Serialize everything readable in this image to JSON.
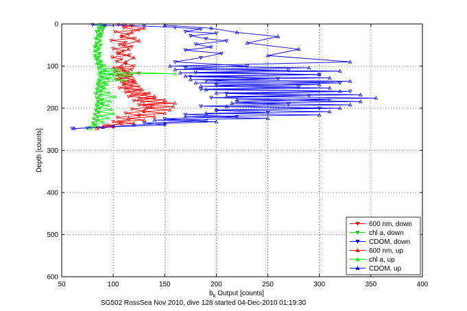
{
  "chart_data": {
    "type": "line",
    "title": "",
    "xlabel_main": "b",
    "xlabel_sub": "b",
    "xlabel_rest": " Output [counts]",
    "ylabel": "Depth [counts]",
    "footer": "SG502 RossSea Nov 2010, dive 128 started 04-Dec-2010 01:19:30",
    "xlim": [
      50,
      400
    ],
    "ylim": [
      0,
      600
    ],
    "y_reversed": true,
    "xticks": [
      50,
      100,
      150,
      200,
      250,
      300,
      350,
      400
    ],
    "yticks": [
      0,
      100,
      200,
      300,
      400,
      500,
      600
    ],
    "grid": true,
    "legend_position": "bottom-right",
    "series": [
      {
        "name": "600 nm, down",
        "color": "#ff0000",
        "marker": "triangle-down",
        "points": [
          [
            105,
            2
          ],
          [
            118,
            5
          ],
          [
            110,
            9
          ],
          [
            125,
            14
          ],
          [
            102,
            19
          ],
          [
            115,
            24
          ],
          [
            108,
            29
          ],
          [
            121,
            34
          ],
          [
            98,
            39
          ],
          [
            112,
            44
          ],
          [
            106,
            49
          ],
          [
            118,
            54
          ],
          [
            100,
            59
          ],
          [
            110,
            64
          ],
          [
            104,
            69
          ],
          [
            116,
            74
          ],
          [
            99,
            79
          ],
          [
            108,
            84
          ],
          [
            103,
            89
          ],
          [
            112,
            94
          ],
          [
            120,
            100
          ],
          [
            105,
            104
          ],
          [
            118,
            108
          ],
          [
            110,
            112
          ],
          [
            125,
            117
          ],
          [
            108,
            122
          ],
          [
            115,
            127
          ],
          [
            103,
            132
          ],
          [
            120,
            137
          ],
          [
            110,
            142
          ],
          [
            118,
            147
          ],
          [
            106,
            152
          ],
          [
            126,
            157
          ],
          [
            112,
            162
          ],
          [
            132,
            167
          ],
          [
            115,
            172
          ],
          [
            140,
            177
          ],
          [
            120,
            182
          ],
          [
            150,
            187
          ],
          [
            125,
            192
          ],
          [
            138,
            197
          ],
          [
            118,
            202
          ],
          [
            130,
            207
          ],
          [
            112,
            212
          ],
          [
            125,
            217
          ],
          [
            104,
            222
          ],
          [
            115,
            227
          ],
          [
            100,
            232
          ],
          [
            108,
            237
          ],
          [
            92,
            242
          ],
          [
            85,
            246
          ]
        ]
      },
      {
        "name": "chl a, down",
        "color": "#00cc00",
        "marker": "triangle-down",
        "points": [
          [
            88,
            2
          ],
          [
            91,
            6
          ],
          [
            86,
            10
          ],
          [
            90,
            14
          ],
          [
            84,
            18
          ],
          [
            89,
            22
          ],
          [
            85,
            26
          ],
          [
            88,
            30
          ],
          [
            83,
            35
          ],
          [
            87,
            40
          ],
          [
            84,
            45
          ],
          [
            88,
            50
          ],
          [
            82,
            55
          ],
          [
            86,
            60
          ],
          [
            83,
            65
          ],
          [
            87,
            70
          ],
          [
            82,
            75
          ],
          [
            86,
            80
          ],
          [
            84,
            85
          ],
          [
            88,
            90
          ],
          [
            85,
            95
          ],
          [
            89,
            100
          ],
          [
            86,
            105
          ],
          [
            92,
            110
          ],
          [
            87,
            115
          ],
          [
            100,
            120
          ],
          [
            88,
            125
          ],
          [
            95,
            130
          ],
          [
            86,
            135
          ],
          [
            92,
            140
          ],
          [
            85,
            145
          ],
          [
            90,
            150
          ],
          [
            84,
            155
          ],
          [
            88,
            160
          ],
          [
            83,
            165
          ],
          [
            87,
            170
          ],
          [
            84,
            175
          ],
          [
            89,
            180
          ],
          [
            85,
            185
          ],
          [
            90,
            190
          ],
          [
            84,
            195
          ],
          [
            87,
            200
          ],
          [
            83,
            205
          ],
          [
            86,
            210
          ],
          [
            82,
            215
          ],
          [
            85,
            220
          ],
          [
            81,
            225
          ],
          [
            84,
            230
          ],
          [
            80,
            235
          ],
          [
            82,
            240
          ],
          [
            78,
            245
          ]
        ]
      },
      {
        "name": "CDOM, down",
        "color": "#0000ff",
        "marker": "triangle-down",
        "points": [
          [
            80,
            2
          ],
          [
            92,
            4
          ],
          [
            110,
            3
          ],
          [
            130,
            5
          ],
          [
            160,
            8
          ],
          [
            185,
            12
          ],
          [
            170,
            18
          ],
          [
            200,
            22
          ],
          [
            175,
            28
          ],
          [
            190,
            35
          ],
          [
            210,
            40
          ],
          [
            180,
            48
          ],
          [
            195,
            55
          ],
          [
            170,
            62
          ],
          [
            205,
            70
          ],
          [
            185,
            80
          ],
          [
            160,
            90
          ],
          [
            230,
            100
          ],
          [
            170,
            105
          ],
          [
            270,
            110
          ],
          [
            180,
            115
          ],
          [
            300,
            120
          ],
          [
            175,
            125
          ],
          [
            260,
            130
          ],
          [
            190,
            135
          ],
          [
            320,
            140
          ],
          [
            200,
            145
          ],
          [
            280,
            150
          ],
          [
            185,
            155
          ],
          [
            330,
            160
          ],
          [
            210,
            165
          ],
          [
            290,
            170
          ],
          [
            195,
            175
          ],
          [
            310,
            180
          ],
          [
            220,
            185
          ],
          [
            270,
            190
          ],
          [
            185,
            195
          ],
          [
            300,
            200
          ],
          [
            200,
            205
          ],
          [
            250,
            210
          ],
          [
            170,
            215
          ],
          [
            220,
            220
          ],
          [
            150,
            225
          ],
          [
            190,
            230
          ],
          [
            130,
            235
          ],
          [
            150,
            240
          ],
          [
            100,
            244
          ],
          [
            75,
            247
          ],
          [
            60,
            248
          ]
        ]
      },
      {
        "name": "600 nm, up",
        "color": "#ff0000",
        "marker": "triangle-up",
        "points": [
          [
            84,
            248
          ],
          [
            100,
            244
          ],
          [
            95,
            240
          ],
          [
            120,
            236
          ],
          [
            105,
            232
          ],
          [
            130,
            228
          ],
          [
            115,
            224
          ],
          [
            140,
            220
          ],
          [
            125,
            216
          ],
          [
            150,
            212
          ],
          [
            130,
            208
          ],
          [
            155,
            204
          ],
          [
            132,
            200
          ],
          [
            158,
            196
          ],
          [
            130,
            192
          ],
          [
            160,
            188
          ],
          [
            128,
            184
          ],
          [
            150,
            180
          ],
          [
            125,
            176
          ],
          [
            140,
            172
          ],
          [
            118,
            168
          ],
          [
            135,
            164
          ],
          [
            115,
            160
          ],
          [
            128,
            156
          ],
          [
            112,
            152
          ],
          [
            125,
            148
          ],
          [
            110,
            144
          ],
          [
            122,
            140
          ],
          [
            108,
            136
          ],
          [
            120,
            132
          ],
          [
            106,
            128
          ],
          [
            118,
            124
          ],
          [
            104,
            120
          ],
          [
            115,
            116
          ],
          [
            102,
            112
          ],
          [
            110,
            108
          ],
          [
            100,
            104
          ],
          [
            108,
            100
          ],
          [
            112,
            90
          ],
          [
            120,
            80
          ],
          [
            105,
            70
          ],
          [
            115,
            60
          ],
          [
            110,
            50
          ],
          [
            125,
            40
          ],
          [
            108,
            30
          ],
          [
            118,
            20
          ],
          [
            130,
            10
          ],
          [
            112,
            3
          ]
        ]
      },
      {
        "name": "chl a, up",
        "color": "#00ff00",
        "marker": "triangle-up",
        "points": [
          [
            78,
            248
          ],
          [
            84,
            243
          ],
          [
            82,
            238
          ],
          [
            90,
            233
          ],
          [
            85,
            228
          ],
          [
            95,
            223
          ],
          [
            88,
            218
          ],
          [
            100,
            213
          ],
          [
            86,
            208
          ],
          [
            98,
            203
          ],
          [
            85,
            198
          ],
          [
            95,
            193
          ],
          [
            84,
            188
          ],
          [
            97,
            183
          ],
          [
            86,
            178
          ],
          [
            102,
            173
          ],
          [
            88,
            168
          ],
          [
            96,
            163
          ],
          [
            85,
            158
          ],
          [
            92,
            153
          ],
          [
            86,
            148
          ],
          [
            94,
            143
          ],
          [
            85,
            138
          ],
          [
            110,
            133
          ],
          [
            87,
            128
          ],
          [
            115,
            123
          ],
          [
            86,
            118
          ],
          [
            160,
            118
          ],
          [
            88,
            113
          ],
          [
            105,
            108
          ],
          [
            86,
            103
          ],
          [
            92,
            98
          ],
          [
            84,
            93
          ],
          [
            88,
            88
          ],
          [
            83,
            80
          ],
          [
            87,
            72
          ],
          [
            82,
            64
          ],
          [
            86,
            56
          ],
          [
            83,
            48
          ],
          [
            87,
            40
          ],
          [
            84,
            32
          ],
          [
            88,
            24
          ],
          [
            85,
            16
          ],
          [
            89,
            8
          ],
          [
            86,
            2
          ]
        ]
      },
      {
        "name": "CDOM, up",
        "color": "#0000ff",
        "marker": "triangle-up",
        "points": [
          [
            62,
            248
          ],
          [
            90,
            245
          ],
          [
            120,
            240
          ],
          [
            150,
            236
          ],
          [
            200,
            232
          ],
          [
            140,
            228
          ],
          [
            250,
            224
          ],
          [
            170,
            220
          ],
          [
            300,
            216
          ],
          [
            190,
            212
          ],
          [
            310,
            208
          ],
          [
            200,
            204
          ],
          [
            320,
            200
          ],
          [
            210,
            196
          ],
          [
            330,
            192
          ],
          [
            215,
            188
          ],
          [
            340,
            184
          ],
          [
            220,
            180
          ],
          [
            355,
            176
          ],
          [
            210,
            172
          ],
          [
            340,
            168
          ],
          [
            200,
            164
          ],
          [
            320,
            160
          ],
          [
            190,
            156
          ],
          [
            310,
            152
          ],
          [
            185,
            148
          ],
          [
            300,
            144
          ],
          [
            180,
            140
          ],
          [
            330,
            136
          ],
          [
            175,
            132
          ],
          [
            310,
            128
          ],
          [
            170,
            124
          ],
          [
            300,
            120
          ],
          [
            165,
            116
          ],
          [
            320,
            112
          ],
          [
            160,
            108
          ],
          [
            290,
            104
          ],
          [
            155,
            100
          ],
          [
            330,
            90
          ],
          [
            250,
            75
          ],
          [
            280,
            60
          ],
          [
            230,
            45
          ],
          [
            260,
            30
          ],
          [
            220,
            20
          ],
          [
            195,
            10
          ],
          [
            150,
            3
          ]
        ]
      }
    ]
  }
}
